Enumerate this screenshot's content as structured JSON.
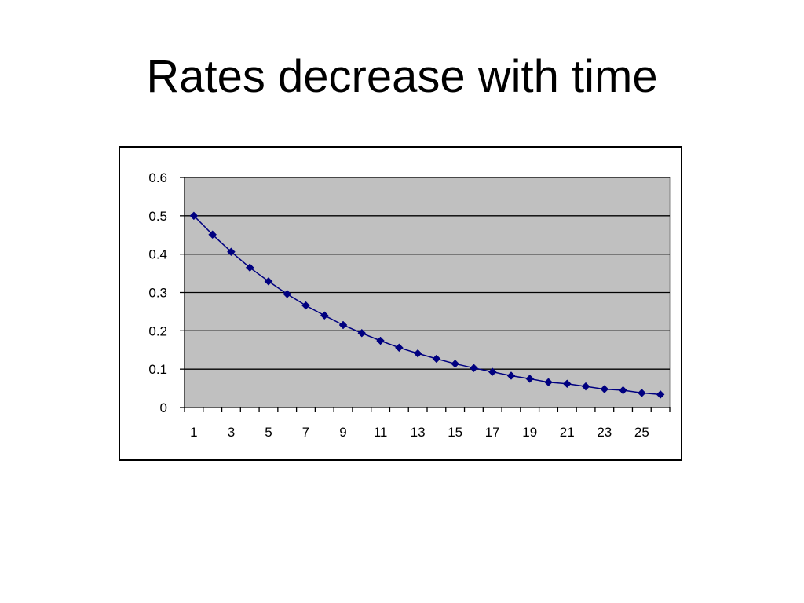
{
  "slide": {
    "title": "Rates decrease with time"
  },
  "chart_data": {
    "type": "line",
    "title": "",
    "xlabel": "",
    "ylabel": "",
    "x": [
      1,
      2,
      3,
      4,
      5,
      6,
      7,
      8,
      9,
      10,
      11,
      12,
      13,
      14,
      15,
      16,
      17,
      18,
      19,
      20,
      21,
      22,
      23,
      24,
      25,
      26
    ],
    "x_tick_labels": [
      "1",
      "3",
      "5",
      "7",
      "9",
      "11",
      "13",
      "15",
      "17",
      "19",
      "21",
      "23",
      "25"
    ],
    "y_tick_labels": [
      "0",
      "0.1",
      "0.2",
      "0.3",
      "0.4",
      "0.5",
      "0.6"
    ],
    "xlim": [
      0.5,
      26.5
    ],
    "ylim": [
      0,
      0.6
    ],
    "y_ticks": [
      0,
      0.1,
      0.2,
      0.3,
      0.4,
      0.5,
      0.6
    ],
    "series": [
      {
        "values": [
          0.5,
          0.451,
          0.406,
          0.365,
          0.329,
          0.296,
          0.266,
          0.24,
          0.215,
          0.194,
          0.174,
          0.156,
          0.141,
          0.127,
          0.114,
          0.103,
          0.093,
          0.083,
          0.075,
          0.066,
          0.062,
          0.055,
          0.048,
          0.045,
          0.038,
          0.034
        ],
        "color": "#000080",
        "marker": "diamond"
      }
    ],
    "grid": true,
    "plot_background": "#c0c0c0",
    "legend": "none"
  }
}
